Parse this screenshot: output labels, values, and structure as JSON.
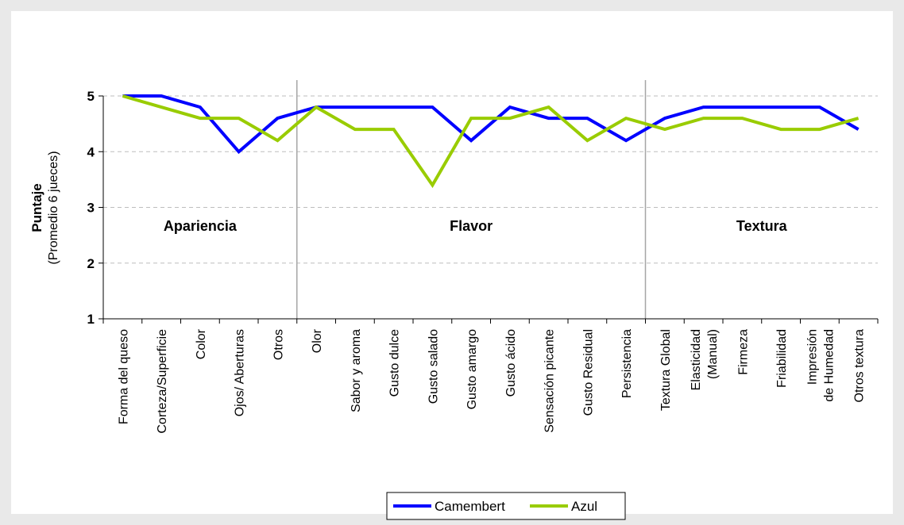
{
  "chart_data": {
    "type": "line",
    "title": "",
    "ylabel": "Puntaje",
    "ylabel_sub": "(Promedio 6 jueces)",
    "ylim": [
      1,
      5
    ],
    "yticks": [
      1,
      2,
      3,
      4,
      5
    ],
    "grid": true,
    "legend_position": "bottom",
    "categories": [
      "Forma del queso",
      "Corteza/Superficie",
      "Color",
      "Ojos/ Aberturas",
      "Otros",
      "Olor",
      "Sabor y aroma",
      "Gusto dulce",
      "Gusto salado",
      "Gusto amargo",
      "Gusto ácido",
      "Sensación picante",
      "Gusto Residual",
      "Persistencia",
      "Textura Global",
      "Elasticidad (Manual)",
      "Firmeza",
      "Friabilidad",
      "Impresión de Humedad",
      "Otros textura"
    ],
    "series": [
      {
        "name": "Camembert",
        "color": "#0000ff",
        "values": [
          5.0,
          5.0,
          4.8,
          4.0,
          4.6,
          4.8,
          4.8,
          4.8,
          4.8,
          4.2,
          4.8,
          4.6,
          4.6,
          4.2,
          4.6,
          4.8,
          4.8,
          4.8,
          4.8,
          4.4
        ]
      },
      {
        "name": "Azul",
        "color": "#99cc00",
        "values": [
          5.0,
          4.8,
          4.6,
          4.6,
          4.2,
          4.8,
          4.4,
          4.4,
          3.4,
          4.6,
          4.6,
          4.8,
          4.2,
          4.6,
          4.4,
          4.6,
          4.6,
          4.4,
          4.4,
          4.6
        ]
      }
    ],
    "sections": [
      {
        "label": "Apariencia",
        "from": 0,
        "to": 4
      },
      {
        "label": "Flavor",
        "from": 5,
        "to": 13
      },
      {
        "label": "Textura",
        "from": 14,
        "to": 19
      }
    ]
  }
}
